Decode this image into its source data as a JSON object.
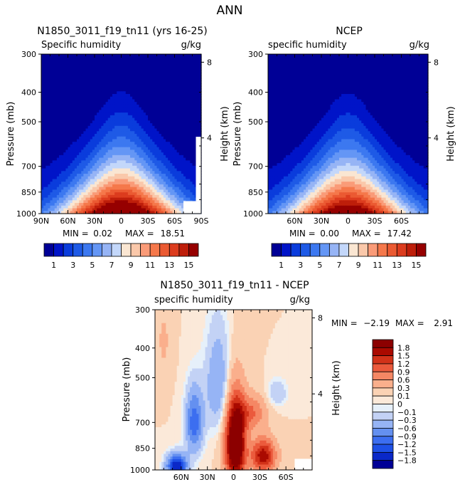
{
  "page_title": "ANN",
  "chart_data": [
    {
      "type": "heatmap",
      "title": "N1850_3011_f19_tn11 (yrs 16-25)",
      "left_label": "Specific humidity",
      "right_label": "g/kg",
      "ylabel": "Pressure (mb)",
      "y2label": "Height (km)",
      "yticks": [
        "300",
        "400",
        "500",
        "700",
        "850",
        "1000"
      ],
      "ytick_values": [
        300,
        400,
        500,
        700,
        850,
        1000
      ],
      "y2ticks": [
        "8",
        "4"
      ],
      "y2tick_values": [
        8,
        4
      ],
      "xticks": [
        "90N",
        "60N",
        "30N",
        "0",
        "30S",
        "60S",
        "90S"
      ],
      "xtick_values": [
        -90,
        -60,
        -30,
        0,
        30,
        60,
        90
      ],
      "xlim": [
        -90,
        90
      ],
      "ylim": [
        1000,
        300
      ],
      "min_label": "MIN =",
      "min_value": "0.02",
      "max_label": "MAX =",
      "max_value": "18.51",
      "peak_lat": 0,
      "peak_value": 18.51,
      "missing_regions": [
        [
          70,
          1000,
          90,
          910
        ],
        [
          84,
          910,
          90,
          560
        ]
      ],
      "missing_lat_start": 60
    },
    {
      "type": "heatmap",
      "title": "NCEP",
      "left_label": "specific humidity",
      "right_label": "g/kg",
      "ylabel": "Pressure (mb)",
      "y2label": "Height (km)",
      "yticks": [
        "300",
        "400",
        "500",
        "700",
        "850",
        "1000"
      ],
      "ytick_values": [
        300,
        400,
        500,
        700,
        850,
        1000
      ],
      "y2ticks": [
        "8",
        "4"
      ],
      "y2tick_values": [
        8,
        4
      ],
      "xticks": [
        "60N",
        "30N",
        "0",
        "30S",
        "60S"
      ],
      "xtick_values": [
        -60,
        -30,
        0,
        30,
        60
      ],
      "xlim": [
        -90,
        90
      ],
      "ylim": [
        1000,
        300
      ],
      "min_label": "MIN =",
      "min_value": "0.00",
      "max_label": "MAX =",
      "max_value": "17.42",
      "peak_lat": 0,
      "peak_value": 17.42,
      "missing_regions": []
    },
    {
      "type": "heatmap",
      "title": "N1850_3011_f19_tn11 - NCEP",
      "left_label": "specific humidity",
      "right_label": "g/kg",
      "ylabel": "Pressure (mb)",
      "y2label": "Height (km)",
      "yticks": [
        "300",
        "400",
        "500",
        "700",
        "850",
        "1000"
      ],
      "ytick_values": [
        300,
        400,
        500,
        700,
        850,
        1000
      ],
      "y2ticks": [
        "8",
        "4"
      ],
      "y2tick_values": [
        8,
        4
      ],
      "xticks": [
        "60N",
        "30N",
        "0",
        "30S",
        "60S"
      ],
      "xtick_values": [
        -60,
        -30,
        0,
        30,
        60
      ],
      "xlim": [
        -90,
        90
      ],
      "ylim": [
        1000,
        300
      ],
      "min_label": "MIN =",
      "min_value": "−2.19",
      "max_label": "MAX =",
      "max_value": "2.91",
      "missing_regions": [
        [
          70,
          1000,
          90,
          920
        ]
      ]
    }
  ],
  "colorbar_abs": {
    "tick_labels": [
      "1",
      "3",
      "5",
      "7",
      "9",
      "11",
      "13",
      "15"
    ],
    "levels": [
      0,
      1,
      2,
      3,
      4,
      5,
      6,
      7,
      8,
      9,
      10,
      11,
      12,
      13,
      14,
      15,
      16
    ],
    "colors": [
      "#000096",
      "#0014c8",
      "#0a3cdc",
      "#1e5ae6",
      "#3c78f0",
      "#6496f5",
      "#96b4f5",
      "#c3d7fa",
      "#fae6d2",
      "#fac8aa",
      "#fa9b78",
      "#f5784b",
      "#eb5a32",
      "#dc3c1e",
      "#be1e0a",
      "#960000"
    ]
  },
  "colorbar_diff": {
    "tick_labels": [
      "1.8",
      "1.5",
      "1.2",
      "0.9",
      "0.6",
      "0.3",
      "0.1",
      "0",
      "−0.1",
      "−0.3",
      "−0.6",
      "−0.9",
      "−1.2",
      "−1.5",
      "−1.8"
    ],
    "levels": [
      -1.8,
      -1.5,
      -1.2,
      -0.9,
      -0.6,
      -0.3,
      -0.1,
      0,
      0.1,
      0.3,
      0.6,
      0.9,
      1.2,
      1.5,
      1.8
    ],
    "colors": [
      "#000096",
      "#0a28c8",
      "#1e50e6",
      "#3c6ef0",
      "#6490f0",
      "#96b4f5",
      "#c3d2f5",
      "#e6f0fa",
      "#fbe9d9",
      "#fad2b4",
      "#faaf8c",
      "#f58764",
      "#eb5a3c",
      "#d23219",
      "#aa0a00",
      "#8c0000"
    ]
  }
}
